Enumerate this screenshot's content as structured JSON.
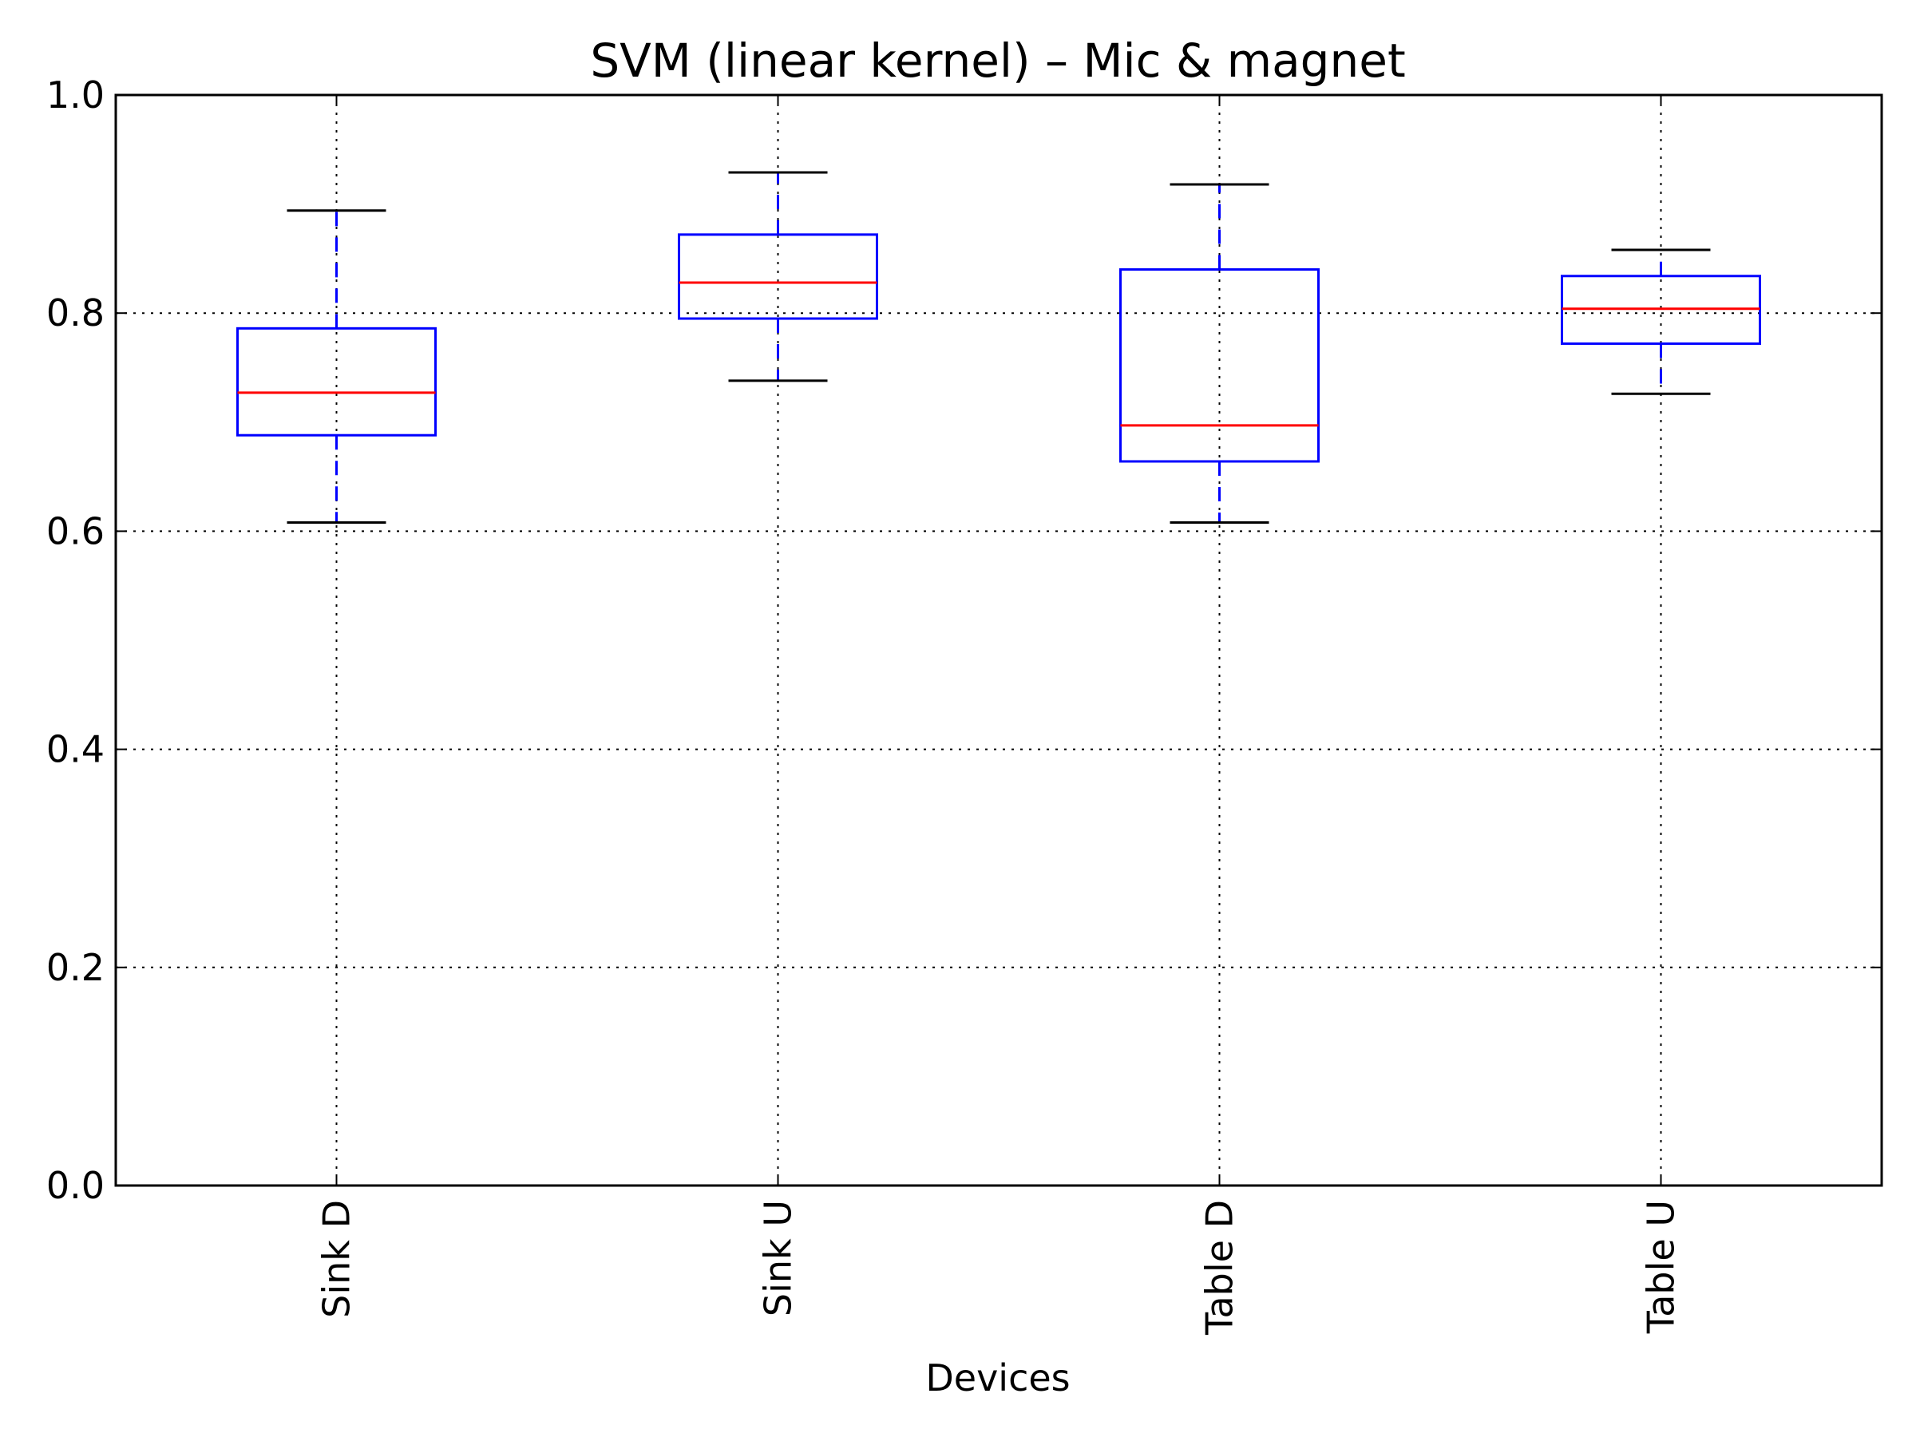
{
  "chart_data": {
    "type": "box",
    "title": "SVM (linear kernel) – Mic & magnet",
    "xlabel": "Devices",
    "ylabel": "",
    "ylim": [
      0.0,
      1.0
    ],
    "yticks": [
      "0.0",
      "0.2",
      "0.4",
      "0.6",
      "0.8",
      "1.0"
    ],
    "grid": true,
    "categories": [
      "Sink D",
      "Sink U",
      "Table D",
      "Table U"
    ],
    "boxes": [
      {
        "category": "Sink D",
        "whisker_low": 0.608,
        "q1": 0.688,
        "median": 0.727,
        "q3": 0.786,
        "whisker_high": 0.894
      },
      {
        "category": "Sink U",
        "whisker_low": 0.738,
        "q1": 0.795,
        "median": 0.828,
        "q3": 0.872,
        "whisker_high": 0.929
      },
      {
        "category": "Table D",
        "whisker_low": 0.608,
        "q1": 0.664,
        "median": 0.697,
        "q3": 0.84,
        "whisker_high": 0.918
      },
      {
        "category": "Table U",
        "whisker_low": 0.726,
        "q1": 0.772,
        "median": 0.804,
        "q3": 0.834,
        "whisker_high": 0.858
      }
    ],
    "colors": {
      "box": "#0000ff",
      "whisker": "#0000ff",
      "cap": "#000000",
      "median": "#ff0000",
      "grid": "#000000"
    }
  }
}
